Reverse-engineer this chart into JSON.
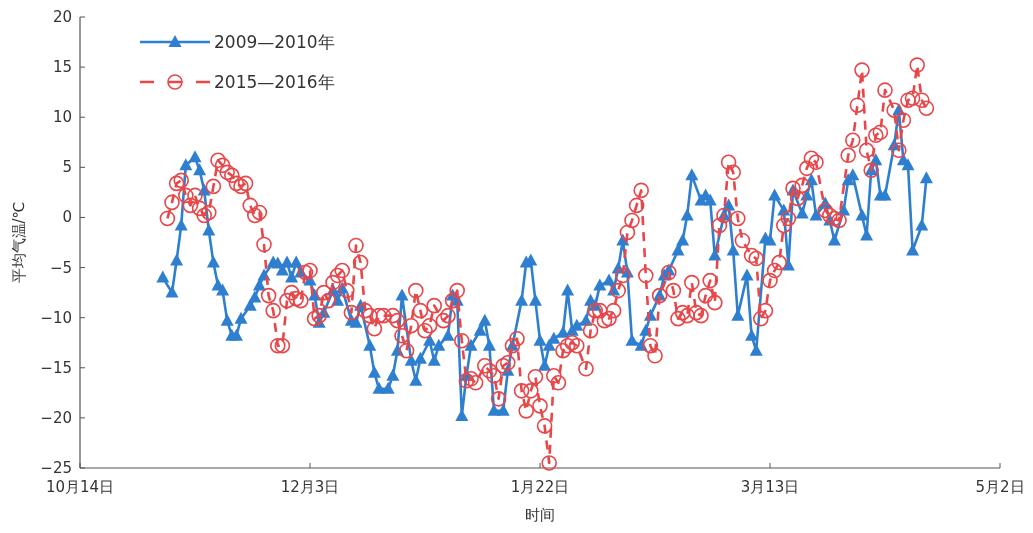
{
  "chart_data": {
    "type": "line",
    "xlabel": "时间",
    "ylabel": "平均气温/℃",
    "legend": "top left",
    "grid": false,
    "xlim": [
      "2009-10-14",
      "2010-05-02"
    ],
    "xticks": [
      {
        "value": "2009-10-14",
        "label": "10月14日"
      },
      {
        "value": "2009-12-03",
        "label": "12月3日"
      },
      {
        "value": "2010-01-22",
        "label": "1月22日"
      },
      {
        "value": "2010-03-13",
        "label": "3月13日"
      },
      {
        "value": "2010-05-02",
        "label": "5月2日"
      }
    ],
    "ylim": [
      -25,
      20
    ],
    "yticks": [
      -25,
      -20,
      -15,
      -10,
      -5,
      0,
      5,
      10,
      15,
      20
    ],
    "series": [
      {
        "name": "2009—2010年",
        "color": "#2f7fd0",
        "marker": "triangle",
        "line_style": "solid",
        "x": [
          "2009-11-01",
          "2009-11-03",
          "2009-11-04",
          "2009-11-05",
          "2009-11-06",
          "2009-11-08",
          "2009-11-09",
          "2009-11-10",
          "2009-11-11",
          "2009-11-12",
          "2009-11-13",
          "2009-11-14",
          "2009-11-15",
          "2009-11-16",
          "2009-11-17",
          "2009-11-18",
          "2009-11-20",
          "2009-11-21",
          "2009-11-22",
          "2009-11-23",
          "2009-11-25",
          "2009-11-26",
          "2009-11-27",
          "2009-11-28",
          "2009-11-29",
          "2009-11-30",
          "2009-12-01",
          "2009-12-03",
          "2009-12-04",
          "2009-12-05",
          "2009-12-06",
          "2009-12-08",
          "2009-12-09",
          "2009-12-10",
          "2009-12-12",
          "2009-12-13",
          "2009-12-14",
          "2009-12-16",
          "2009-12-17",
          "2009-12-18",
          "2009-12-20",
          "2009-12-21",
          "2009-12-22",
          "2009-12-23",
          "2009-12-25",
          "2009-12-26",
          "2009-12-27",
          "2009-12-29",
          "2009-12-30",
          "2009-12-31",
          "2010-01-02",
          "2010-01-03",
          "2010-01-04",
          "2010-01-05",
          "2010-01-06",
          "2010-01-07",
          "2010-01-09",
          "2010-01-10",
          "2010-01-11",
          "2010-01-12",
          "2010-01-14",
          "2010-01-15",
          "2010-01-16",
          "2010-01-18",
          "2010-01-19",
          "2010-01-20",
          "2010-01-21",
          "2010-01-22",
          "2010-01-23",
          "2010-01-24",
          "2010-01-25",
          "2010-01-27",
          "2010-01-28",
          "2010-01-29",
          "2010-01-30",
          "2010-02-01",
          "2010-02-02",
          "2010-02-03",
          "2010-02-04",
          "2010-02-06",
          "2010-02-07",
          "2010-02-08",
          "2010-02-09",
          "2010-02-10",
          "2010-02-11",
          "2010-02-13",
          "2010-02-14",
          "2010-02-15",
          "2010-02-17",
          "2010-02-18",
          "2010-02-19",
          "2010-02-21",
          "2010-02-22",
          "2010-02-23",
          "2010-02-24",
          "2010-02-26",
          "2010-02-27",
          "2010-02-28",
          "2010-03-01",
          "2010-03-03",
          "2010-03-04",
          "2010-03-05",
          "2010-03-06",
          "2010-03-08",
          "2010-03-09",
          "2010-03-10",
          "2010-03-12",
          "2010-03-13",
          "2010-03-14",
          "2010-03-16",
          "2010-03-17",
          "2010-03-18",
          "2010-03-20",
          "2010-03-21",
          "2010-03-22",
          "2010-03-23",
          "2010-03-25",
          "2010-03-26",
          "2010-03-27",
          "2010-03-29",
          "2010-03-30",
          "2010-03-31",
          "2010-04-02",
          "2010-04-03",
          "2010-04-04",
          "2010-04-05",
          "2010-04-06",
          "2010-04-07",
          "2010-04-09",
          "2010-04-10",
          "2010-04-11",
          "2010-04-12",
          "2010-04-13",
          "2010-04-15",
          "2010-04-16"
        ],
        "values": [
          -6,
          -7.5,
          -4.3,
          -0.8,
          5.2,
          6,
          4.7,
          2.7,
          -1.3,
          -4.5,
          -6.8,
          -7.3,
          -10.3,
          -11.8,
          -11.8,
          -10.1,
          -8.8,
          -8,
          -6.8,
          -5.8,
          -4.5,
          -4.6,
          -5.3,
          -4.5,
          -6,
          -4.5,
          -5.5,
          -6.3,
          -7.8,
          -10.5,
          -9.5,
          -7.3,
          -8.3,
          -7.1,
          -10.3,
          -10.5,
          -8.8,
          -12.8,
          -15.5,
          -17.1,
          -17.1,
          -15.8,
          -13.3,
          -7.8,
          -14.3,
          -16.3,
          -14.1,
          -12.3,
          -14.3,
          -12.8,
          -11.8,
          -7.8,
          -8.3,
          -19.8,
          -15.8,
          -12.8,
          -11.3,
          -10.3,
          -12.8,
          -19.3,
          -19.3,
          -15.3,
          -12.8,
          -8.3,
          -4.5,
          -4.3,
          -8.3,
          -12.3,
          -14.8,
          -12.8,
          -12.1,
          -11.5,
          -7.3,
          -11.3,
          -10.8,
          -10.3,
          -8.3,
          -8.8,
          -6.8,
          -6.3,
          -7.3,
          -5.1,
          -2.3,
          -5.5,
          -12.3,
          -12.8,
          -11.3,
          -9.8,
          -7.8,
          -5.8,
          -5.3,
          -3.3,
          -2.3,
          0.2,
          4.2,
          1.7,
          2.2,
          1.7,
          -3.8,
          0.2,
          1.2,
          -3.3,
          -9.8,
          -5.8,
          -11.8,
          -13.3,
          -2.1,
          -2.3,
          2.2,
          0.7,
          -4.8,
          2.7,
          0.4,
          2.2,
          3.7,
          0.2,
          1.4,
          -0.3,
          -2.3,
          0.7,
          3.7,
          4.2,
          0.2,
          -1.8,
          4.7,
          5.7,
          2.2,
          2.2,
          7.2,
          10.7,
          5.7,
          5.2,
          -3.3,
          -0.8,
          3.9
        ]
      },
      {
        "name": "2015—2016年",
        "color": "#e8474a",
        "marker": "circle",
        "line_style": "dashed",
        "x": [
          "2009-11-02",
          "2009-11-03",
          "2009-11-04",
          "2009-11-05",
          "2009-11-06",
          "2009-11-07",
          "2009-11-08",
          "2009-11-09",
          "2009-11-10",
          "2009-11-11",
          "2009-11-12",
          "2009-11-13",
          "2009-11-14",
          "2009-11-15",
          "2009-11-16",
          "2009-11-17",
          "2009-11-18",
          "2009-11-19",
          "2009-11-20",
          "2009-11-21",
          "2009-11-22",
          "2009-11-23",
          "2009-11-24",
          "2009-11-25",
          "2009-11-26",
          "2009-11-27",
          "2009-11-28",
          "2009-11-29",
          "2009-11-30",
          "2009-12-01",
          "2009-12-02",
          "2009-12-03",
          "2009-12-04",
          "2009-12-05",
          "2009-12-06",
          "2009-12-07",
          "2009-12-08",
          "2009-12-09",
          "2009-12-10",
          "2009-12-11",
          "2009-12-12",
          "2009-12-13",
          "2009-12-14",
          "2009-12-15",
          "2009-12-16",
          "2009-12-17",
          "2009-12-18",
          "2009-12-19",
          "2009-12-21",
          "2009-12-22",
          "2009-12-23",
          "2009-12-24",
          "2009-12-25",
          "2009-12-26",
          "2009-12-27",
          "2009-12-28",
          "2009-12-29",
          "2009-12-30",
          "2010-01-01",
          "2010-01-02",
          "2010-01-03",
          "2010-01-04",
          "2010-01-05",
          "2010-01-06",
          "2010-01-07",
          "2010-01-08",
          "2010-01-10",
          "2010-01-11",
          "2010-01-12",
          "2010-01-13",
          "2010-01-14",
          "2010-01-15",
          "2010-01-16",
          "2010-01-17",
          "2010-01-18",
          "2010-01-19",
          "2010-01-20",
          "2010-01-21",
          "2010-01-22",
          "2010-01-23",
          "2010-01-24",
          "2010-01-25",
          "2010-01-26",
          "2010-01-27",
          "2010-01-28",
          "2010-01-29",
          "2010-01-30",
          "2010-02-01",
          "2010-02-02",
          "2010-02-03",
          "2010-02-04",
          "2010-02-05",
          "2010-02-06",
          "2010-02-07",
          "2010-02-08",
          "2010-02-09",
          "2010-02-10",
          "2010-02-11",
          "2010-02-12",
          "2010-02-13",
          "2010-02-14",
          "2010-02-15",
          "2010-02-16",
          "2010-02-17",
          "2010-02-19",
          "2010-02-20",
          "2010-02-21",
          "2010-02-22",
          "2010-02-23",
          "2010-02-24",
          "2010-02-25",
          "2010-02-26",
          "2010-02-27",
          "2010-02-28",
          "2010-03-01",
          "2010-03-02",
          "2010-03-03",
          "2010-03-04",
          "2010-03-05",
          "2010-03-06",
          "2010-03-07",
          "2010-03-09",
          "2010-03-10",
          "2010-03-11",
          "2010-03-12",
          "2010-03-13",
          "2010-03-14",
          "2010-03-15",
          "2010-03-16",
          "2010-03-17",
          "2010-03-18",
          "2010-03-19",
          "2010-03-20",
          "2010-03-21",
          "2010-03-22",
          "2010-03-23",
          "2010-03-25",
          "2010-03-26",
          "2010-03-27",
          "2010-03-28",
          "2010-03-30",
          "2010-03-31",
          "2010-04-01",
          "2010-04-02",
          "2010-04-03",
          "2010-04-04",
          "2010-04-05",
          "2010-04-06",
          "2010-04-07",
          "2010-04-09",
          "2010-04-10",
          "2010-04-11",
          "2010-04-12",
          "2010-04-13",
          "2010-04-14",
          "2010-04-15",
          "2010-04-16"
        ],
        "values": [
          -0.1,
          1.5,
          3.4,
          3.7,
          2.2,
          1.2,
          2.2,
          0.9,
          0.2,
          0.5,
          3.1,
          5.7,
          5.2,
          4.5,
          4.2,
          3.4,
          3.1,
          3.4,
          1.2,
          0.2,
          0.5,
          -2.7,
          -7.8,
          -9.3,
          -12.8,
          -12.8,
          -8.3,
          -7.5,
          -8.1,
          -8.3,
          -5.5,
          -5.3,
          -10.1,
          -9.8,
          -7.5,
          -8.3,
          -6.5,
          -5.8,
          -5.3,
          -7.3,
          -9.5,
          -2.8,
          -4.5,
          -9.3,
          -9.8,
          -11.1,
          -9.8,
          -9.8,
          -9.8,
          -10.3,
          -11.8,
          -13.3,
          -10.8,
          -7.3,
          -9.3,
          -11.3,
          -10.8,
          -8.8,
          -10.3,
          -9.8,
          -8.3,
          -7.3,
          -12.3,
          -16.3,
          -16.1,
          -16.5,
          -14.8,
          -15.3,
          -15.8,
          -18.1,
          -14.8,
          -14.5,
          -12.8,
          -12.1,
          -17.3,
          -19.3,
          -17.3,
          -15.9,
          -18.8,
          -20.8,
          -24.5,
          -15.8,
          -16.5,
          -13.3,
          -12.8,
          -12.5,
          -12.8,
          -15.1,
          -11.3,
          -9.3,
          -9.3,
          -10.3,
          -10.1,
          -9.3,
          -7.3,
          -5.8,
          -1.5,
          -0.3,
          1.2,
          2.7,
          -5.8,
          -12.8,
          -13.8,
          -7.8,
          -5.5,
          -7.3,
          -10.1,
          -9.5,
          -9.8,
          -6.5,
          -9.5,
          -9.8,
          -7.8,
          -6.3,
          -8.5,
          -0.8,
          0.2,
          5.5,
          4.5,
          -0.1,
          -2.3,
          -3.8,
          -4.1,
          -10.1,
          -9.3,
          -6.3,
          -5.3,
          -4.5,
          -0.8,
          -0.1,
          2.9,
          1.9,
          3.2,
          4.9,
          5.9,
          5.5,
          0.7,
          0.2,
          -0.1,
          -0.3,
          6.2,
          7.7,
          11.2,
          14.7,
          6.7,
          4.7,
          8.2,
          8.5,
          12.7,
          10.7,
          6.7,
          9.7,
          11.7,
          11.9,
          15.2,
          11.7,
          10.9
        ]
      }
    ]
  }
}
